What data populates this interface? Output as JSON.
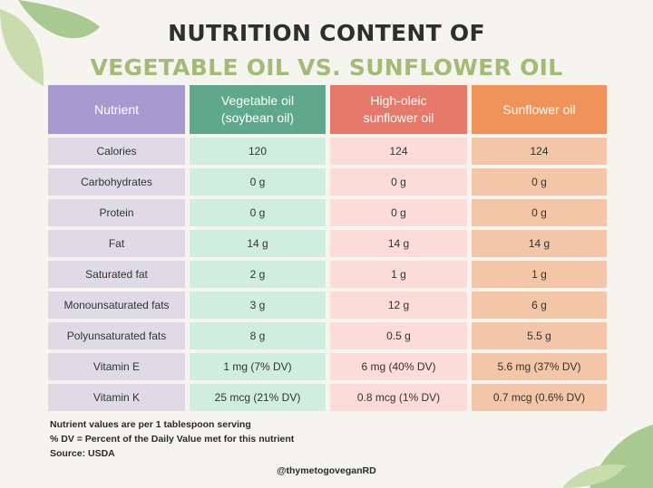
{
  "title": {
    "line1": "NUTRITION CONTENT OF",
    "line2": "VEGETABLE OIL VS. SUNFLOWER OIL"
  },
  "colors": {
    "title_dark": "#2f2f2f",
    "title_green": "#a3bb76",
    "nutrient_header": "#a69ad0",
    "vegetable_header": "#5fa88d",
    "high_oleic_header": "#e6796a",
    "sunflower_header": "#f0935b"
  },
  "table": {
    "headers": [
      "Nutrient",
      "Vegetable oil\n(soybean oil)",
      "High-oleic\nsunflower oil",
      "Sunflower oil"
    ],
    "rows": [
      [
        "Calories",
        "120",
        "124",
        "124"
      ],
      [
        "Carbohydrates",
        "0 g",
        "0 g",
        "0 g"
      ],
      [
        "Protein",
        "0 g",
        "0 g",
        "0 g"
      ],
      [
        "Fat",
        "14 g",
        "14 g",
        "14 g"
      ],
      [
        "Saturated fat",
        "2 g",
        "1 g",
        "1 g"
      ],
      [
        "Monounsaturated fats",
        "3 g",
        "12 g",
        "6 g"
      ],
      [
        "Polyunsaturated fats",
        "8 g",
        "0.5 g",
        "5.5 g"
      ],
      [
        "Vitamin E",
        "1 mg (7% DV)",
        "6 mg (40% DV)",
        "5.6 mg (37% DV)"
      ],
      [
        "Vitamin K",
        "25 mcg (21% DV)",
        "0.8 mcg (1% DV)",
        "0.7 mcg (0.6% DV)"
      ]
    ]
  },
  "footnotes": [
    "Nutrient values are per 1 tablespoon serving",
    "% DV = Percent of the Daily Value met for this nutrient",
    "Source: USDA"
  ],
  "handle": "@thymetogoveganRD"
}
